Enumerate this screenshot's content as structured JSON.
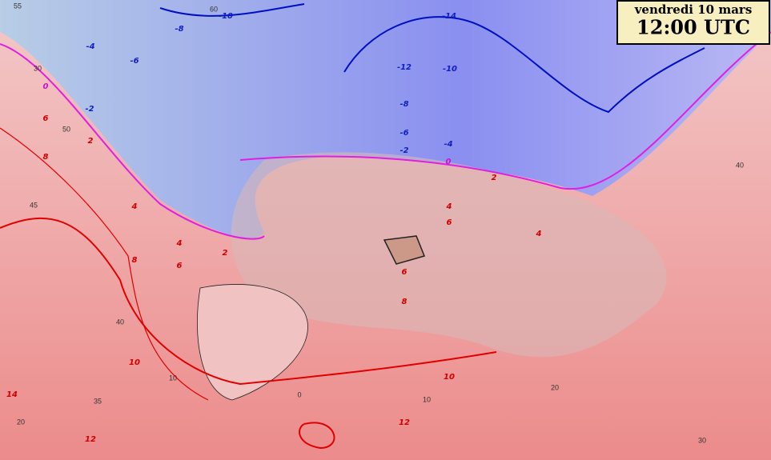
{
  "header": {
    "day": "vendredi 10 mars",
    "time": "12:00 UTC"
  },
  "isotherm_labels": [
    -10,
    -8,
    -4,
    -6,
    -2,
    -14,
    -12,
    -10,
    -8,
    -6,
    -2,
    -4,
    0,
    0,
    6,
    2,
    8,
    4,
    4,
    8,
    6,
    2,
    2,
    4,
    6,
    4,
    6,
    8,
    10,
    10,
    12,
    12,
    14
  ],
  "grid_labels": [
    55,
    30,
    50,
    45,
    40,
    35,
    20,
    10,
    0,
    10,
    20,
    30,
    40,
    60
  ]
}
